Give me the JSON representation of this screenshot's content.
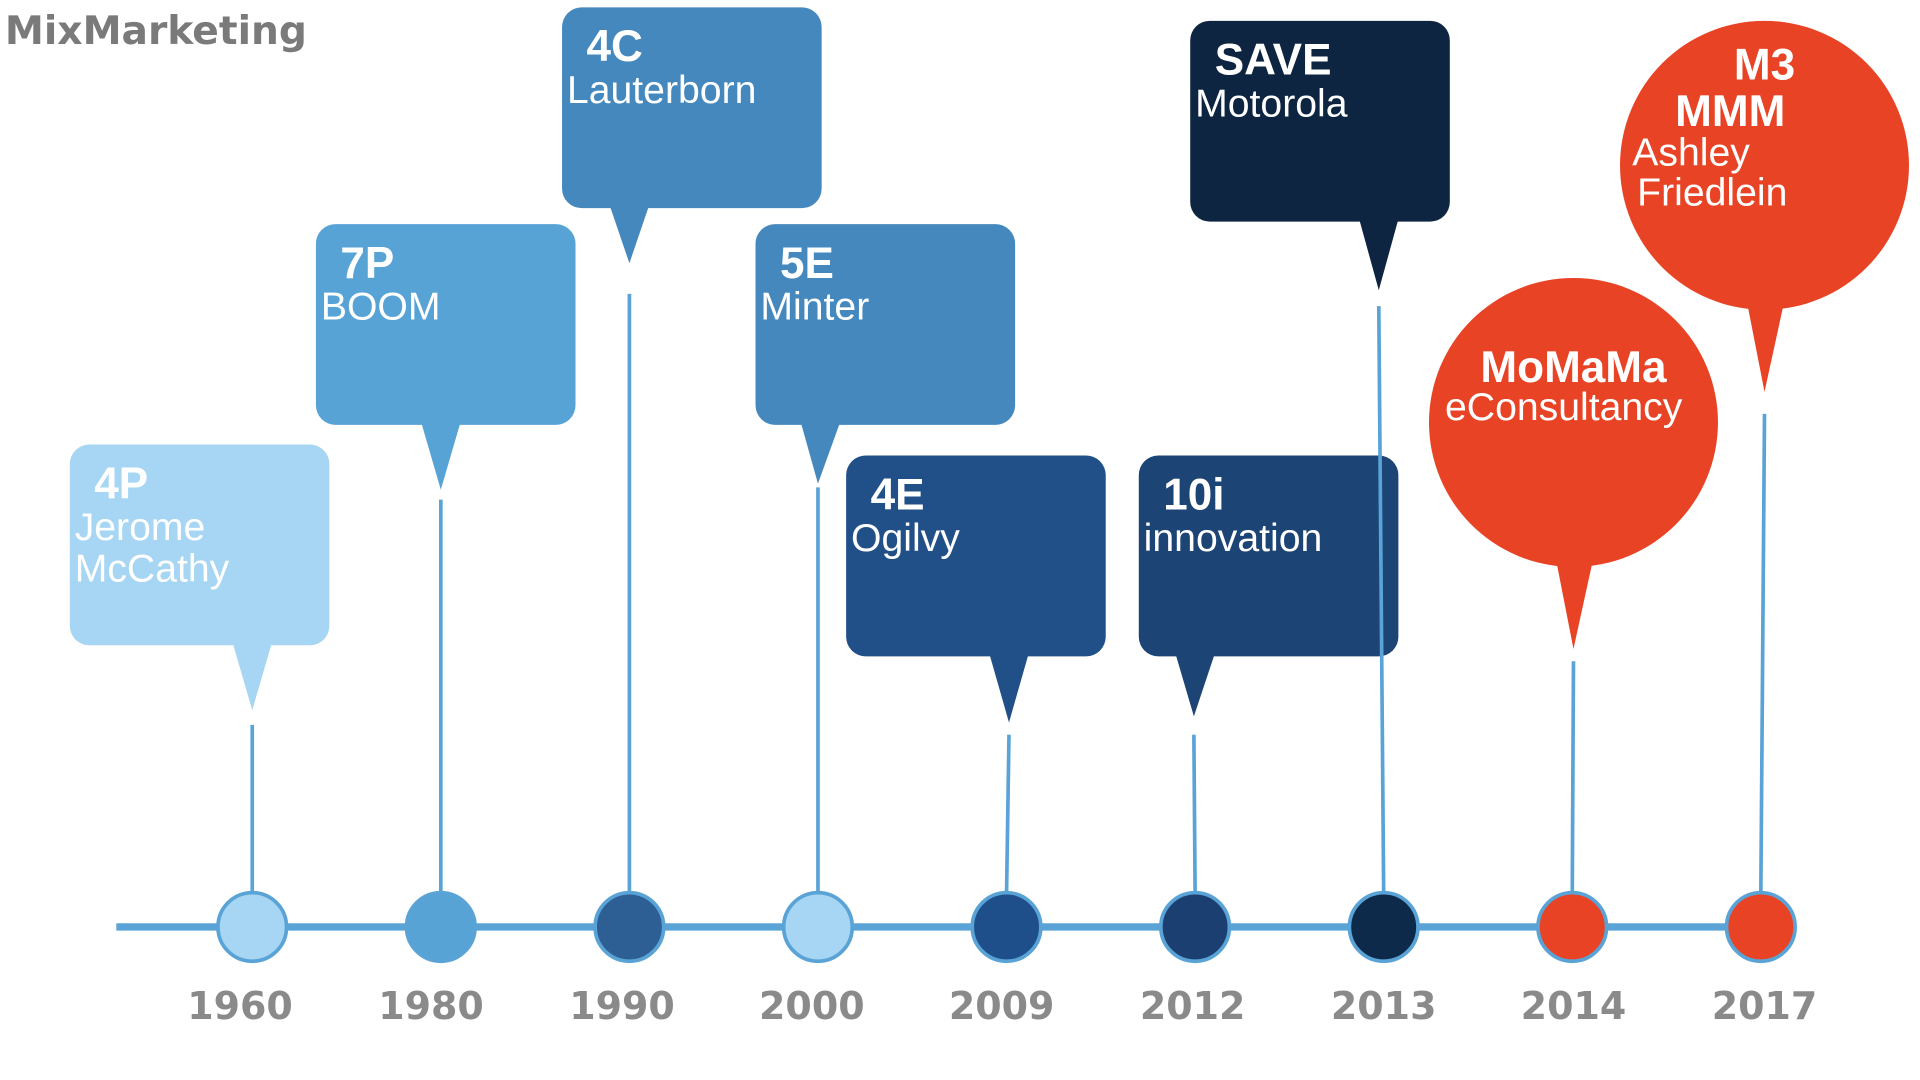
{
  "title": "MixMarketing",
  "colors": {
    "line": "#5aa3d6",
    "year_text": "#8a8a8a"
  },
  "events": [
    {
      "year": "1960",
      "label": "4P",
      "lines": [
        "Jerome",
        "McCathy"
      ],
      "color": "#a6d6f3",
      "dot": "#a6d6f3",
      "shape": "box"
    },
    {
      "year": "1980",
      "label": "7P",
      "lines": [
        "BOOM"
      ],
      "color": "#57a3d6",
      "dot": "#57a3d6",
      "shape": "box"
    },
    {
      "year": "1990",
      "label": "4C",
      "lines": [
        "Lauterborn"
      ],
      "color": "#4588be",
      "dot": "#2e5f94",
      "shape": "box"
    },
    {
      "year": "2000",
      "label": "5E",
      "lines": [
        "Minter"
      ],
      "color": "#4588be",
      "dot": "#a6d6f3",
      "shape": "box"
    },
    {
      "year": "2009",
      "label": "4E",
      "lines": [
        "Ogilvy"
      ],
      "color": "#214f87",
      "dot": "#1f4f8a",
      "shape": "box"
    },
    {
      "year": "2012",
      "label": "10i",
      "lines": [
        "innovation"
      ],
      "color": "#1c4475",
      "dot": "#1b3f70",
      "shape": "box"
    },
    {
      "year": "2013",
      "label": "SAVE",
      "lines": [
        "Motorola"
      ],
      "color": "#0d2541",
      "dot": "#0d2a4a",
      "shape": "box"
    },
    {
      "year": "2014",
      "label": "MoMaMa",
      "lines": [
        "eConsultancy"
      ],
      "color": "#e84325",
      "dot": "#e84325",
      "shape": "bubble"
    },
    {
      "year": "2017",
      "label": "M3 MMM",
      "lines": [
        "Ashley",
        "Friedlein"
      ],
      "color": "#e84325",
      "dot": "#e84325",
      "shape": "bubble"
    }
  ]
}
